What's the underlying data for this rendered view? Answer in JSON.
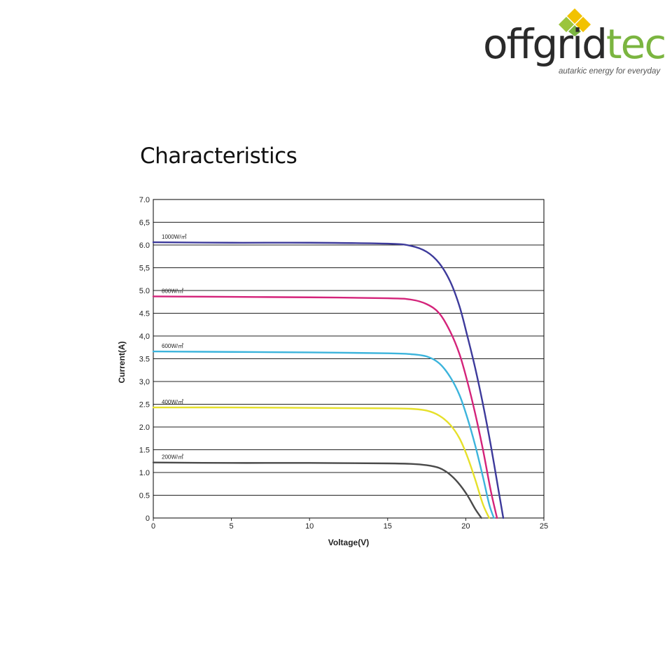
{
  "logo": {
    "word_dark": "offgrid",
    "word_green": "tec",
    "tagline": "autarkic energy for everyday",
    "colors": {
      "dark": "#2a2a2a",
      "green": "#7bb540",
      "yellow": "#f2c200",
      "lime": "#9bc53d"
    }
  },
  "page": {
    "title": "Characteristics"
  },
  "chart_data": {
    "type": "line",
    "title": "",
    "xlabel": "Voltage(V)",
    "ylabel": "Current(A)",
    "xlim": [
      0,
      25
    ],
    "ylim": [
      0,
      7
    ],
    "xticks": [
      "0",
      "5",
      "10",
      "15",
      "20",
      "25"
    ],
    "yticks": [
      "0",
      "0.5",
      "1.0",
      "1.5",
      "2.0",
      "2.5",
      "3,0",
      "3.5",
      "4,0",
      "4.5",
      "5.0",
      "5,5",
      "6.0",
      "6,5",
      "7.0"
    ],
    "grid": "horizontal",
    "series": [
      {
        "name": "1000W/㎡",
        "color": "#3d3a9b",
        "x": [
          0,
          5,
          10,
          15,
          16.5,
          17.5,
          18.3,
          19,
          19.6,
          20.1,
          20.6,
          21.1,
          21.6,
          22.1,
          22.4
        ],
        "y": [
          6.06,
          6.05,
          6.05,
          6.03,
          5.98,
          5.85,
          5.6,
          5.2,
          4.65,
          4.0,
          3.3,
          2.5,
          1.6,
          0.6,
          0
        ]
      },
      {
        "name": "800W/㎡",
        "color": "#d4237a",
        "x": [
          0,
          5,
          10,
          15,
          16.5,
          17.5,
          18.3,
          19,
          19.6,
          20.1,
          20.6,
          21.1,
          21.6,
          22.0
        ],
        "y": [
          4.87,
          4.86,
          4.85,
          4.83,
          4.8,
          4.7,
          4.5,
          4.1,
          3.6,
          3.0,
          2.3,
          1.5,
          0.6,
          0
        ]
      },
      {
        "name": "600W/㎡",
        "color": "#3cb4dc",
        "x": [
          0,
          5,
          10,
          15,
          16.5,
          17.5,
          18.3,
          19,
          19.6,
          20.1,
          20.6,
          21.1,
          21.5,
          21.8
        ],
        "y": [
          3.66,
          3.65,
          3.64,
          3.62,
          3.6,
          3.55,
          3.4,
          3.1,
          2.7,
          2.2,
          1.6,
          0.9,
          0.3,
          0
        ]
      },
      {
        "name": "400W/㎡",
        "color": "#e6e02a",
        "x": [
          0,
          5,
          10,
          15,
          16.5,
          17.5,
          18.3,
          19,
          19.6,
          20.1,
          20.6,
          21.1,
          21.5
        ],
        "y": [
          2.43,
          2.43,
          2.42,
          2.41,
          2.4,
          2.36,
          2.25,
          2.05,
          1.75,
          1.35,
          0.85,
          0.3,
          0
        ]
      },
      {
        "name": "200W/㎡",
        "color": "#4a4a4a",
        "x": [
          0,
          5,
          10,
          15,
          16.5,
          17.5,
          18.3,
          18.9,
          19.5,
          20.1,
          20.6,
          21.0
        ],
        "y": [
          1.22,
          1.21,
          1.21,
          1.2,
          1.19,
          1.16,
          1.1,
          0.98,
          0.78,
          0.5,
          0.2,
          0
        ]
      }
    ]
  }
}
